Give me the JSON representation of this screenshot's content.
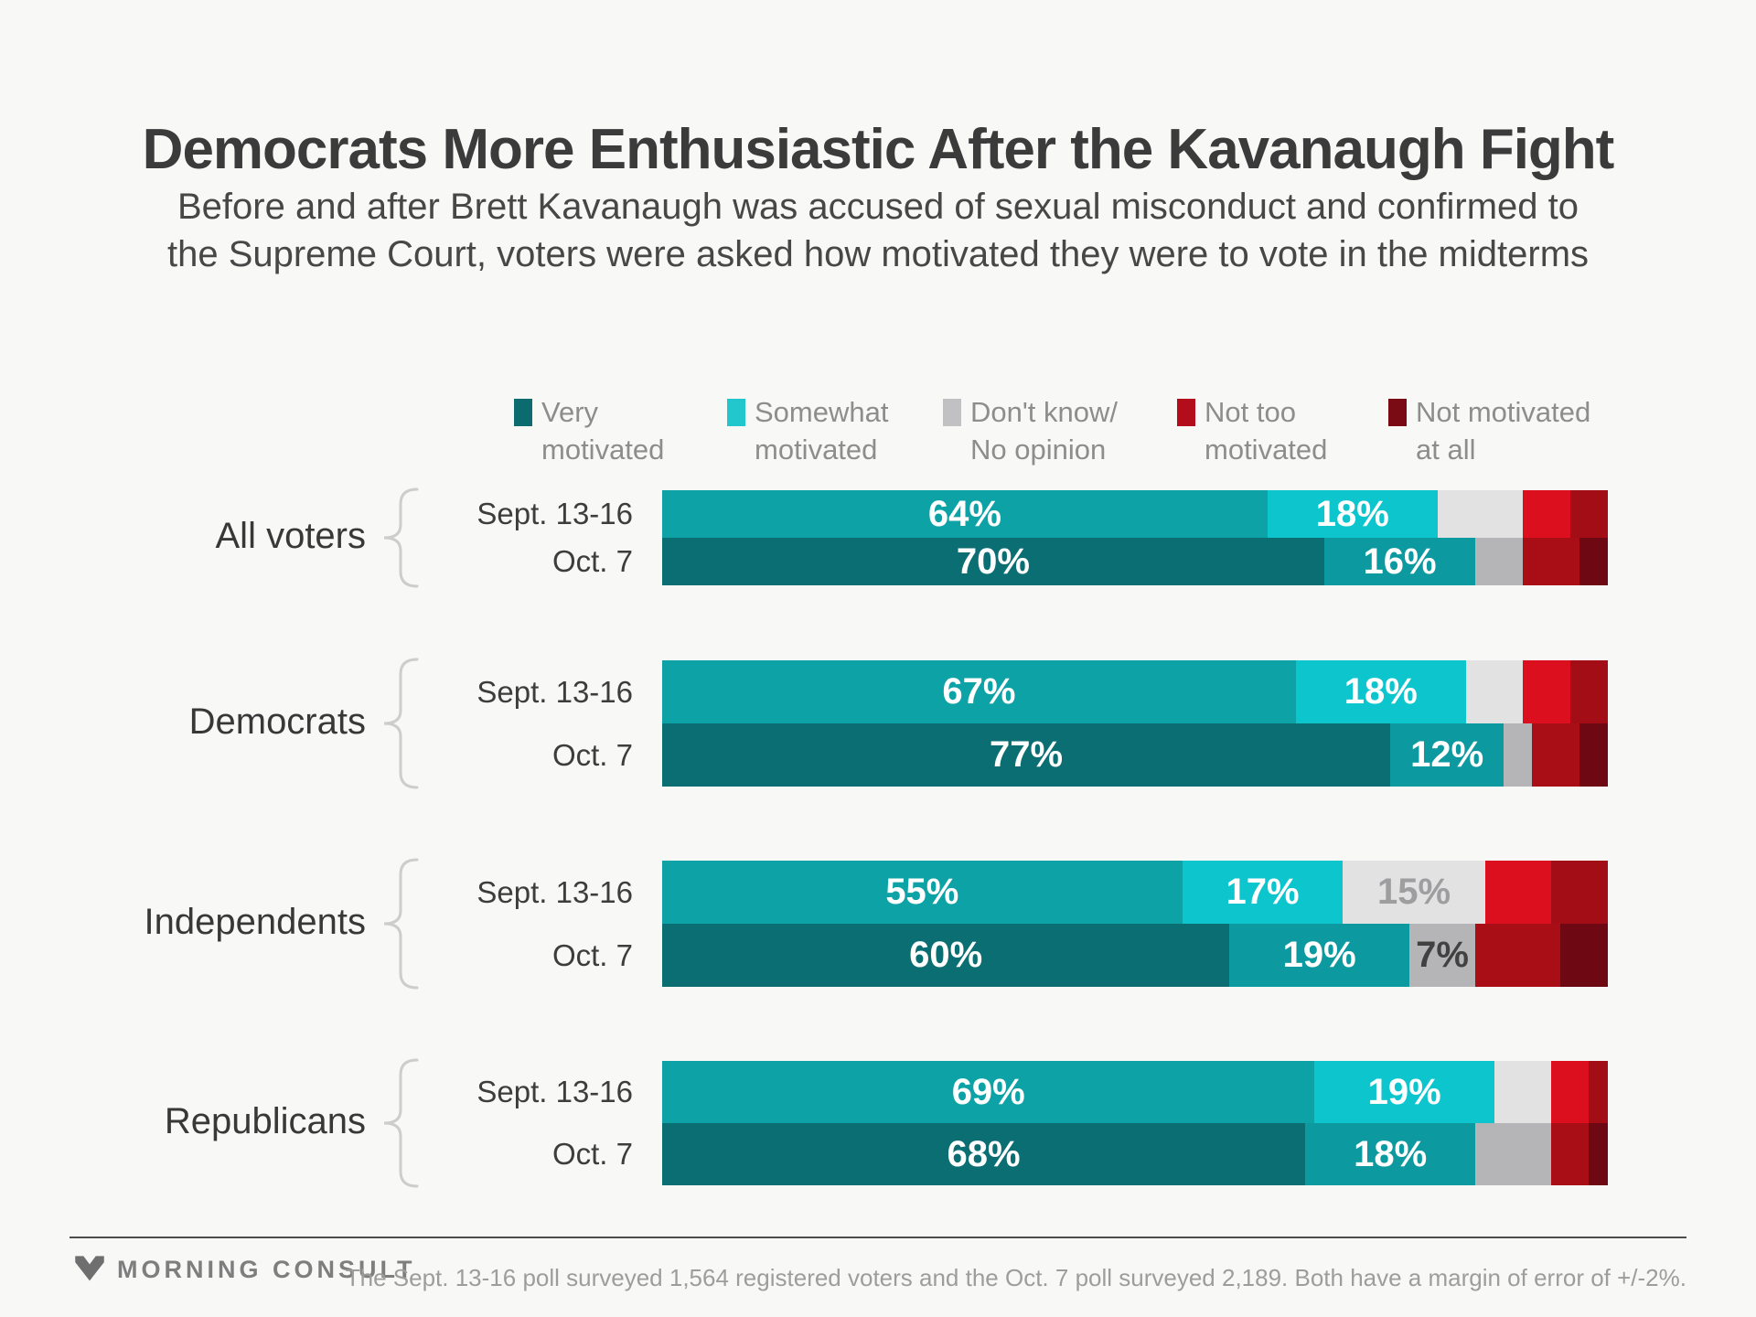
{
  "title": "Democrats More Enthusiastic After the Kavanaugh Fight",
  "subtitle_line1": "Before and after Brett Kavanaugh was accused of sexual misconduct and confirmed to",
  "subtitle_line2": "the Supreme Court, voters were asked how motivated they were to vote in the midterms",
  "legend": [
    {
      "line1": "Very",
      "line2": "motivated",
      "color": "#0b6b6e",
      "key": "very-motivated"
    },
    {
      "line1": "Somewhat",
      "line2": "motivated",
      "color": "#22c7cd",
      "key": "somewhat-motivated"
    },
    {
      "line1": "Don't know/",
      "line2": "No opinion",
      "color": "#c1c1c3",
      "key": "dont-know"
    },
    {
      "line1": "Not too",
      "line2": "motivated",
      "color": "#b30d1c",
      "key": "not-too-motivated"
    },
    {
      "line1": "Not motivated",
      "line2": "at all",
      "color": "#7a0b15",
      "key": "not-motivated-at-all"
    }
  ],
  "chart_data": {
    "type": "bar",
    "orientation": "horizontal-stacked",
    "xlim": [
      0,
      100
    ],
    "categories": [
      "Very motivated",
      "Somewhat motivated",
      "Don't know/No opinion",
      "Not too motivated",
      "Not motivated at all"
    ],
    "category_keys": [
      "very-motivated",
      "somewhat-motivated",
      "dont-know",
      "not-too-motivated",
      "not-motivated-at-all"
    ],
    "palette": {
      "sept": [
        "#0da2a6",
        "#0cc5cd",
        "#e2e2e3",
        "#dc0f1f",
        "#a30d15"
      ],
      "oct": [
        "#0b6e72",
        "#0d99a0",
        "#b5b5b7",
        "#a90d15",
        "#6e0812"
      ]
    },
    "groups": [
      {
        "label": "All voters",
        "rows": [
          {
            "date": "Sept. 13-16",
            "shade": "sept",
            "values": [
              64,
              18,
              9,
              5,
              4
            ],
            "labels": [
              "64%",
              "18%",
              "",
              "",
              ""
            ],
            "label_colors": [
              null,
              null,
              null,
              null,
              null
            ]
          },
          {
            "date": "Oct. 7",
            "shade": "oct",
            "values": [
              70,
              16,
              5,
              6,
              3
            ],
            "labels": [
              "70%",
              "16%",
              "",
              "",
              ""
            ],
            "label_colors": [
              null,
              null,
              null,
              null,
              null
            ]
          }
        ]
      },
      {
        "label": "Democrats",
        "rows": [
          {
            "date": "Sept. 13-16",
            "shade": "sept",
            "values": [
              67,
              18,
              6,
              5,
              4
            ],
            "labels": [
              "67%",
              "18%",
              "",
              "",
              ""
            ],
            "label_colors": [
              null,
              null,
              null,
              null,
              null
            ]
          },
          {
            "date": "Oct. 7",
            "shade": "oct",
            "values": [
              77,
              12,
              3,
              5,
              3
            ],
            "labels": [
              "77%",
              "12%",
              "",
              "",
              ""
            ],
            "label_colors": [
              null,
              null,
              null,
              null,
              null
            ]
          }
        ]
      },
      {
        "label": "Independents",
        "rows": [
          {
            "date": "Sept. 13-16",
            "shade": "sept",
            "values": [
              55,
              17,
              15,
              7,
              6
            ],
            "labels": [
              "55%",
              "17%",
              "15%",
              "",
              ""
            ],
            "label_colors": [
              null,
              null,
              "#9e9ea0",
              null,
              null
            ]
          },
          {
            "date": "Oct. 7",
            "shade": "oct",
            "values": [
              60,
              19,
              7,
              9,
              5
            ],
            "labels": [
              "60%",
              "19%",
              "7%",
              "",
              ""
            ],
            "label_colors": [
              null,
              null,
              "#414141",
              null,
              null
            ]
          }
        ]
      },
      {
        "label": "Republicans",
        "rows": [
          {
            "date": "Sept. 13-16",
            "shade": "sept",
            "values": [
              69,
              19,
              6,
              4,
              2
            ],
            "labels": [
              "69%",
              "19%",
              "",
              "",
              ""
            ],
            "label_colors": [
              null,
              null,
              null,
              null,
              null
            ]
          },
          {
            "date": "Oct. 7",
            "shade": "oct",
            "values": [
              68,
              18,
              8,
              4,
              2
            ],
            "labels": [
              "68%",
              "18%",
              "",
              "",
              ""
            ],
            "label_colors": [
              null,
              null,
              null,
              null,
              null
            ]
          }
        ]
      }
    ]
  },
  "footer": {
    "logo_text": "MORNING CONSULT",
    "note": "The Sept. 13-16 poll surveyed 1,564 registered voters and the Oct. 7 poll surveyed 2,189. Both have a margin of error of +/-2%."
  }
}
